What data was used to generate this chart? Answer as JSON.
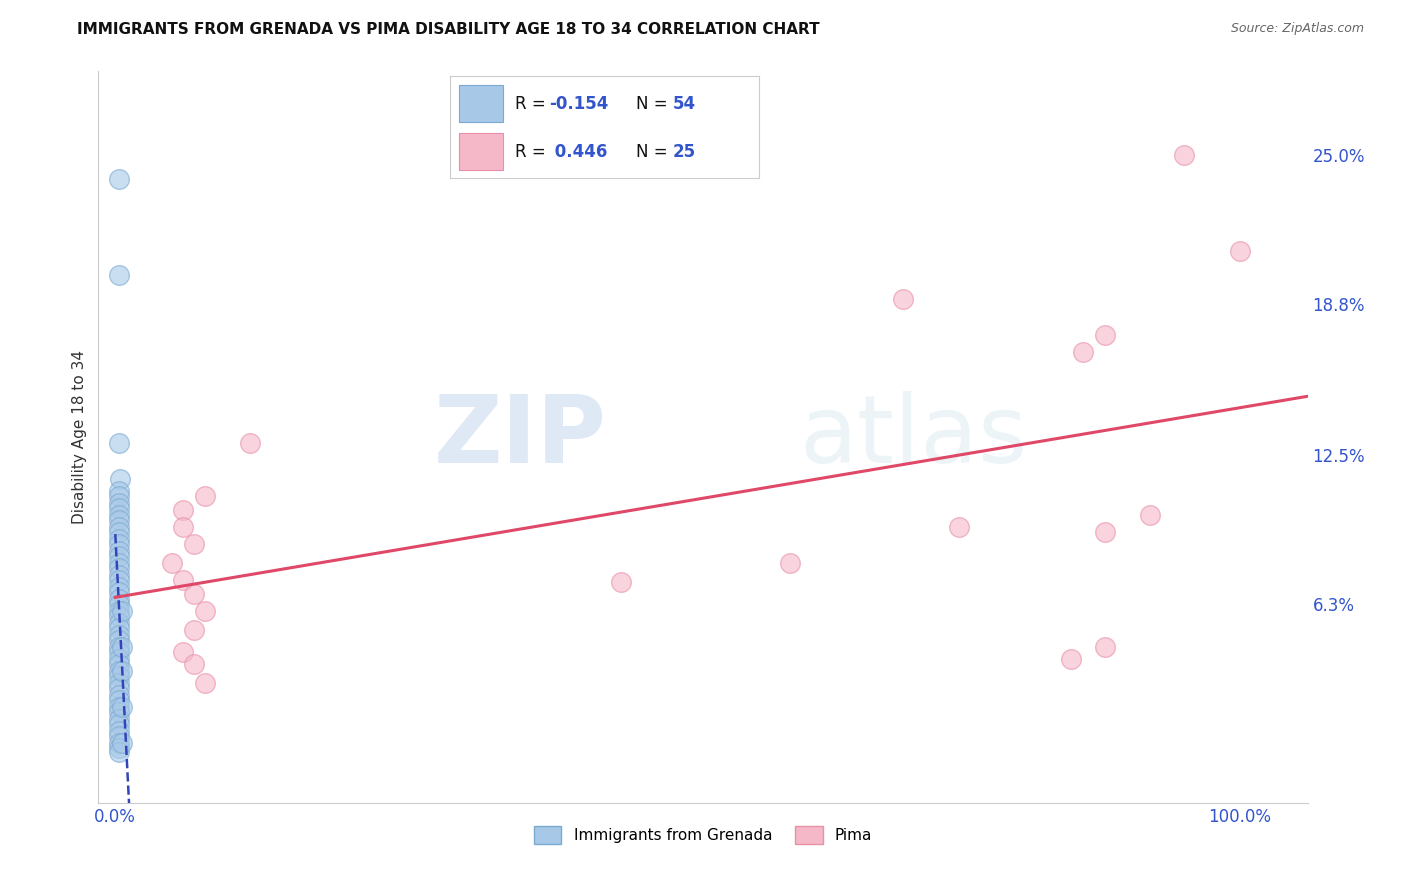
{
  "title": "IMMIGRANTS FROM GRENADA VS PIMA DISABILITY AGE 18 TO 34 CORRELATION CHART",
  "source": "Source: ZipAtlas.com",
  "ylabel": "Disability Age 18 to 34",
  "y_ticklabels": [
    "6.3%",
    "12.5%",
    "18.8%",
    "25.0%"
  ],
  "y_tick_values": [
    0.063,
    0.125,
    0.188,
    0.25
  ],
  "xlim": [
    -0.015,
    1.06
  ],
  "ylim": [
    -0.02,
    0.285
  ],
  "blue_color": "#a8c8e8",
  "blue_edge_color": "#7aaad0",
  "pink_color": "#f5b8c8",
  "pink_edge_color": "#e890a8",
  "blue_line_color": "#3344bb",
  "pink_line_color": "#e04868",
  "blue_scatter": [
    [
      0.003,
      0.2
    ],
    [
      0.003,
      0.13
    ],
    [
      0.004,
      0.115
    ],
    [
      0.003,
      0.11
    ],
    [
      0.003,
      0.108
    ],
    [
      0.003,
      0.105
    ],
    [
      0.003,
      0.103
    ],
    [
      0.003,
      0.1
    ],
    [
      0.003,
      0.098
    ],
    [
      0.003,
      0.095
    ],
    [
      0.003,
      0.093
    ],
    [
      0.003,
      0.09
    ],
    [
      0.003,
      0.088
    ],
    [
      0.003,
      0.085
    ],
    [
      0.003,
      0.083
    ],
    [
      0.003,
      0.08
    ],
    [
      0.003,
      0.078
    ],
    [
      0.003,
      0.075
    ],
    [
      0.003,
      0.073
    ],
    [
      0.003,
      0.07
    ],
    [
      0.003,
      0.068
    ],
    [
      0.003,
      0.065
    ],
    [
      0.003,
      0.063
    ],
    [
      0.003,
      0.06
    ],
    [
      0.003,
      0.058
    ],
    [
      0.003,
      0.055
    ],
    [
      0.003,
      0.053
    ],
    [
      0.003,
      0.05
    ],
    [
      0.003,
      0.048
    ],
    [
      0.003,
      0.045
    ],
    [
      0.003,
      0.043
    ],
    [
      0.003,
      0.04
    ],
    [
      0.003,
      0.038
    ],
    [
      0.003,
      0.035
    ],
    [
      0.003,
      0.033
    ],
    [
      0.003,
      0.03
    ],
    [
      0.003,
      0.028
    ],
    [
      0.003,
      0.025
    ],
    [
      0.003,
      0.023
    ],
    [
      0.003,
      0.02
    ],
    [
      0.003,
      0.018
    ],
    [
      0.003,
      0.015
    ],
    [
      0.003,
      0.013
    ],
    [
      0.003,
      0.01
    ],
    [
      0.003,
      0.008
    ],
    [
      0.003,
      0.005
    ],
    [
      0.003,
      0.003
    ],
    [
      0.003,
      0.001
    ],
    [
      0.006,
      0.06
    ],
    [
      0.006,
      0.045
    ],
    [
      0.006,
      0.035
    ],
    [
      0.006,
      0.02
    ],
    [
      0.006,
      0.005
    ],
    [
      0.003,
      0.24
    ]
  ],
  "pink_scatter": [
    [
      0.95,
      0.25
    ],
    [
      1.0,
      0.21
    ],
    [
      0.7,
      0.19
    ],
    [
      0.88,
      0.175
    ],
    [
      0.86,
      0.168
    ],
    [
      0.92,
      0.1
    ],
    [
      0.88,
      0.093
    ],
    [
      0.75,
      0.095
    ],
    [
      0.6,
      0.08
    ],
    [
      0.88,
      0.045
    ],
    [
      0.85,
      0.04
    ],
    [
      0.12,
      0.13
    ],
    [
      0.08,
      0.108
    ],
    [
      0.06,
      0.102
    ],
    [
      0.06,
      0.095
    ],
    [
      0.05,
      0.08
    ],
    [
      0.06,
      0.073
    ],
    [
      0.07,
      0.067
    ],
    [
      0.08,
      0.06
    ],
    [
      0.07,
      0.052
    ],
    [
      0.06,
      0.043
    ],
    [
      0.07,
      0.038
    ],
    [
      0.08,
      0.03
    ],
    [
      0.45,
      0.072
    ],
    [
      0.07,
      0.088
    ]
  ],
  "watermark_text": "ZIP",
  "watermark_text2": "atlas",
  "background_color": "#ffffff",
  "grid_color": "#cccccc",
  "legend_blue_r": "-0.154",
  "legend_blue_n": "54",
  "legend_pink_r": "0.446",
  "legend_pink_n": "25",
  "label_grenada": "Immigrants from Grenada",
  "label_pima": "Pima"
}
